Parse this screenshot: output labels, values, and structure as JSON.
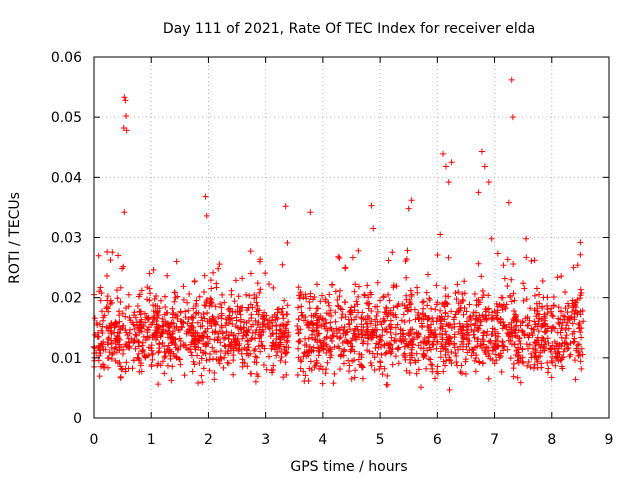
{
  "chart_data": {
    "type": "scatter",
    "title": "Day 111 of 2021, Rate Of TEC Index for receiver elda",
    "xlabel": "GPS time / hours",
    "ylabel": "ROTI / TECUs",
    "xlim": [
      0,
      9
    ],
    "ylim": [
      0,
      0.06
    ],
    "xticks": [
      "0",
      "1",
      "2",
      "3",
      "4",
      "5",
      "6",
      "7",
      "8",
      "9"
    ],
    "yticks": [
      "0",
      "0.01",
      "0.02",
      "0.03",
      "0.04",
      "0.05",
      "0.06"
    ],
    "grid": true,
    "marker": "+",
    "series": [
      {
        "name": "ROTI",
        "color": "#ff0000",
        "x_range": [
          0.0,
          8.55
        ],
        "gap": [
          3.4,
          3.55
        ],
        "baseline_range": [
          0.004,
          0.024
        ],
        "outliers": [
          {
            "x": 0.53,
            "y": 0.0533
          },
          {
            "x": 0.55,
            "y": 0.0528
          },
          {
            "x": 0.56,
            "y": 0.0502
          },
          {
            "x": 0.52,
            "y": 0.0482
          },
          {
            "x": 0.57,
            "y": 0.0478
          },
          {
            "x": 0.53,
            "y": 0.0342
          },
          {
            "x": 1.95,
            "y": 0.0368
          },
          {
            "x": 1.97,
            "y": 0.0336
          },
          {
            "x": 3.35,
            "y": 0.0352
          },
          {
            "x": 3.38,
            "y": 0.0291
          },
          {
            "x": 3.78,
            "y": 0.0342
          },
          {
            "x": 4.62,
            "y": 0.0278
          },
          {
            "x": 4.85,
            "y": 0.0353
          },
          {
            "x": 4.88,
            "y": 0.0315
          },
          {
            "x": 5.55,
            "y": 0.0362
          },
          {
            "x": 5.5,
            "y": 0.0348
          },
          {
            "x": 6.1,
            "y": 0.0439
          },
          {
            "x": 6.15,
            "y": 0.0418
          },
          {
            "x": 6.2,
            "y": 0.0392
          },
          {
            "x": 6.25,
            "y": 0.0425
          },
          {
            "x": 6.05,
            "y": 0.0305
          },
          {
            "x": 6.78,
            "y": 0.0443
          },
          {
            "x": 6.83,
            "y": 0.0418
          },
          {
            "x": 6.72,
            "y": 0.0375
          },
          {
            "x": 6.9,
            "y": 0.0392
          },
          {
            "x": 6.95,
            "y": 0.0298
          },
          {
            "x": 7.3,
            "y": 0.0562
          },
          {
            "x": 7.32,
            "y": 0.05
          },
          {
            "x": 7.25,
            "y": 0.0358
          },
          {
            "x": 7.55,
            "y": 0.0298
          },
          {
            "x": 8.5,
            "y": 0.0292
          }
        ]
      }
    ]
  }
}
